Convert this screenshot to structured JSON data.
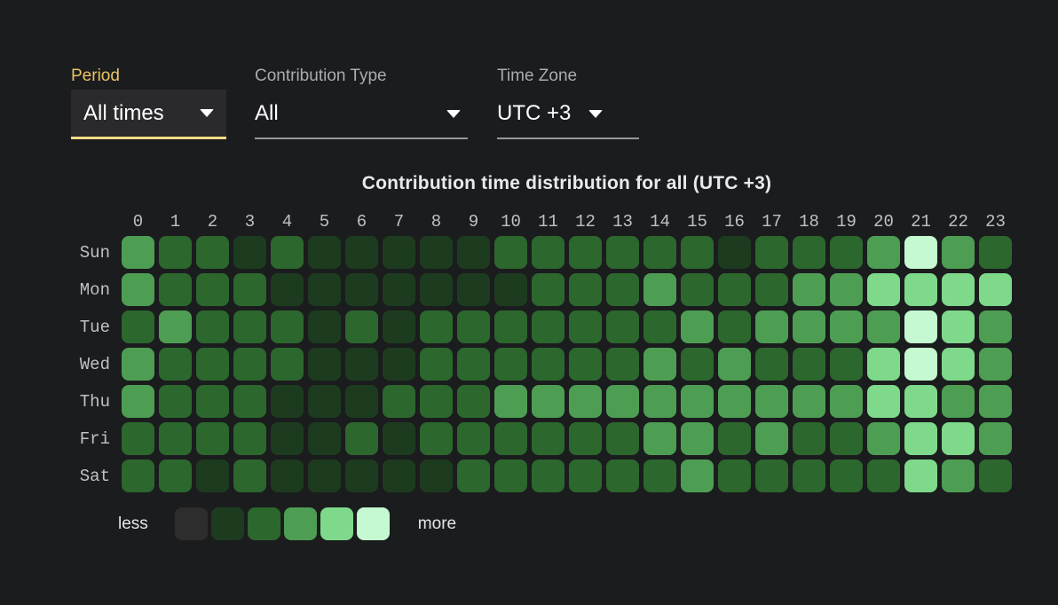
{
  "filters": {
    "period": {
      "label": "Period",
      "value": "All times"
    },
    "contribution_type": {
      "label": "Contribution Type",
      "value": "All"
    },
    "time_zone": {
      "label": "Time Zone",
      "value": "UTC +3"
    }
  },
  "chart_data": {
    "type": "heatmap",
    "title": "Contribution time distribution for all (UTC +3)",
    "hours": [
      "0",
      "1",
      "2",
      "3",
      "4",
      "5",
      "6",
      "7",
      "8",
      "9",
      "10",
      "11",
      "12",
      "13",
      "14",
      "15",
      "16",
      "17",
      "18",
      "19",
      "20",
      "21",
      "22",
      "23"
    ],
    "days": [
      "Sun",
      "Mon",
      "Tue",
      "Wed",
      "Thu",
      "Fri",
      "Sat"
    ],
    "palette": [
      "#2d2d2d",
      "#1d3c1f",
      "#2c672e",
      "#4d9e53",
      "#7ed98a",
      "#c5f9d1"
    ],
    "values": [
      [
        3,
        2,
        2,
        1,
        2,
        1,
        1,
        1,
        1,
        1,
        2,
        2,
        2,
        2,
        2,
        2,
        1,
        2,
        2,
        2,
        3,
        5,
        3,
        2
      ],
      [
        3,
        2,
        2,
        2,
        1,
        1,
        1,
        1,
        1,
        1,
        1,
        2,
        2,
        2,
        3,
        2,
        2,
        2,
        3,
        3,
        4,
        4,
        4,
        4
      ],
      [
        2,
        3,
        2,
        2,
        2,
        1,
        2,
        1,
        2,
        2,
        2,
        2,
        2,
        2,
        2,
        3,
        2,
        3,
        3,
        3,
        3,
        5,
        4,
        3
      ],
      [
        3,
        2,
        2,
        2,
        2,
        1,
        1,
        1,
        2,
        2,
        2,
        2,
        2,
        2,
        3,
        2,
        3,
        2,
        2,
        2,
        4,
        5,
        4,
        3
      ],
      [
        3,
        2,
        2,
        2,
        1,
        1,
        1,
        2,
        2,
        2,
        3,
        3,
        3,
        3,
        3,
        3,
        3,
        3,
        3,
        3,
        4,
        4,
        3,
        3
      ],
      [
        2,
        2,
        2,
        2,
        1,
        1,
        2,
        1,
        2,
        2,
        2,
        2,
        2,
        2,
        3,
        3,
        2,
        3,
        2,
        2,
        3,
        4,
        4,
        3
      ],
      [
        2,
        2,
        1,
        2,
        1,
        1,
        1,
        1,
        1,
        2,
        2,
        2,
        2,
        2,
        2,
        3,
        2,
        2,
        2,
        2,
        2,
        4,
        3,
        2
      ]
    ],
    "legend": {
      "less_label": "less",
      "more_label": "more"
    }
  },
  "colors": {
    "background": "#1b1c1e",
    "select_background": "#2a2a2c",
    "accent_yellow": "#e9c462",
    "accent_yellow_underline": "#f8dc86",
    "label_gray": "#a9abad",
    "axis_text": "#bfc1c3",
    "title_text": "#e9eaeb",
    "underline_gray": "#97999c"
  }
}
